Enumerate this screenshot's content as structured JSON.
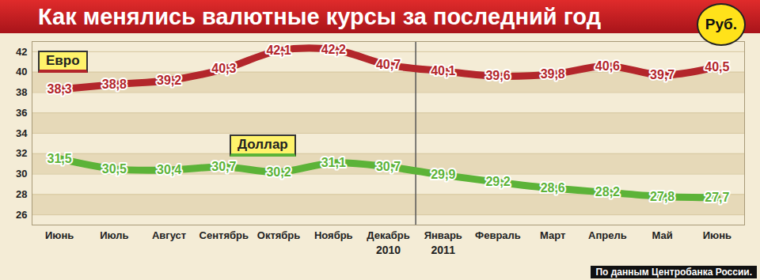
{
  "chart_data": {
    "type": "line",
    "title": "Как менялись валютные курсы за последний год",
    "y_label": "Руб.",
    "source": "По данным Центробанка России.",
    "categories": [
      "Июнь",
      "Июль",
      "Август",
      "Сентябрь",
      "Октябрь",
      "Ноябрь",
      "Декабрь",
      "Январь",
      "Февраль",
      "Март",
      "Апрель",
      "Май",
      "Июнь"
    ],
    "series": [
      {
        "name": "Евро",
        "color": "#b3262b",
        "values": [
          38.3,
          38.8,
          39.2,
          40.3,
          42.1,
          42.2,
          40.7,
          40.1,
          39.6,
          39.8,
          40.6,
          39.7,
          40.5
        ],
        "value_labels": [
          "38,3",
          "38,8",
          "39,2",
          "40,3",
          "42,1",
          "42,2",
          "40,7",
          "40,1",
          "39,6",
          "39,8",
          "40,6",
          "39,7",
          "40,5"
        ]
      },
      {
        "name": "Доллар",
        "color": "#5cb338",
        "values": [
          31.5,
          30.5,
          30.4,
          30.7,
          30.2,
          31.1,
          30.7,
          29.9,
          29.2,
          28.6,
          28.2,
          27.8,
          27.7
        ],
        "value_labels": [
          "31,5",
          "30,5",
          "30,4",
          "30,7",
          "30,2",
          "31,1",
          "30,7",
          "29,9",
          "29,2",
          "28,6",
          "28,2",
          "27,8",
          "27,7"
        ]
      }
    ],
    "ylim": [
      25,
      43
    ],
    "yticks": [
      26,
      28,
      30,
      32,
      34,
      36,
      38,
      40,
      42
    ],
    "grid": true,
    "data_labels": true,
    "annotations": [
      {
        "text": "2010",
        "category_index": 6
      },
      {
        "text": "2011",
        "category_index": 7
      }
    ]
  }
}
